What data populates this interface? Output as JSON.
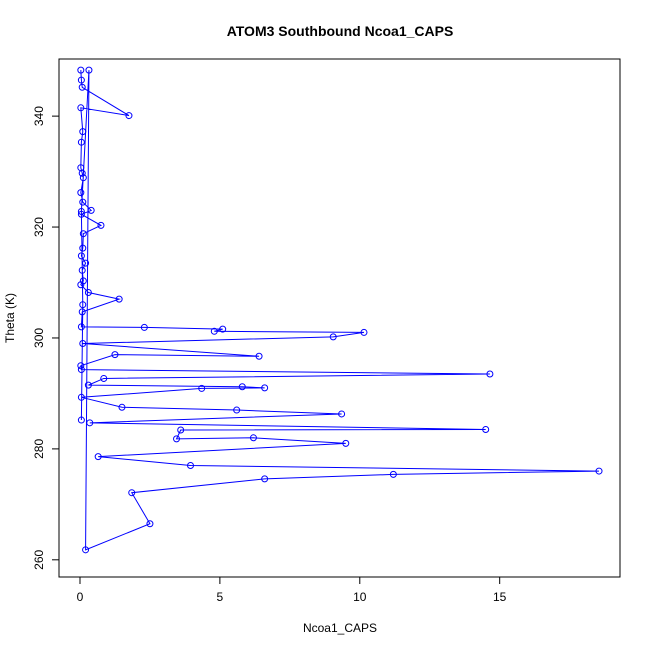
{
  "chart_data": {
    "type": "line",
    "title": "ATOM3 Southbound Ncoa1_CAPS",
    "xlabel": "Ncoa1_CAPS",
    "ylabel": "Theta (K)",
    "xlim": [
      -0.75,
      19.3
    ],
    "ylim": [
      256.9,
      350.3
    ],
    "xticks": [
      0,
      5,
      10,
      15
    ],
    "yticks": [
      260,
      280,
      300,
      320,
      340
    ],
    "grid": false,
    "series": [
      {
        "color": "#0000ff",
        "marker": "open-circle",
        "points": [
          [
            0.03,
            348.3
          ],
          [
            0.05,
            346.5
          ],
          [
            0.08,
            345.2
          ],
          [
            1.75,
            340.1
          ],
          [
            0.03,
            341.5
          ],
          [
            0.1,
            337.2
          ],
          [
            0.05,
            335.3
          ],
          [
            0.03,
            330.7
          ],
          [
            0.08,
            329.7
          ],
          [
            0.12,
            328.9
          ],
          [
            0.03,
            326.2
          ],
          [
            0.1,
            324.5
          ],
          [
            0.4,
            323.0
          ],
          [
            0.05,
            322.3
          ],
          [
            0.75,
            320.3
          ],
          [
            0.12,
            318.8
          ],
          [
            0.1,
            316.2
          ],
          [
            0.05,
            314.8
          ],
          [
            0.2,
            313.5
          ],
          [
            0.08,
            312.2
          ],
          [
            0.12,
            310.3
          ],
          [
            0.03,
            309.6
          ],
          [
            0.3,
            308.2
          ],
          [
            1.4,
            307.0
          ],
          [
            0.08,
            304.7
          ],
          [
            0.05,
            302.0
          ],
          [
            2.3,
            301.9
          ],
          [
            5.1,
            301.6
          ],
          [
            4.8,
            301.2
          ],
          [
            10.15,
            301.0
          ],
          [
            9.05,
            300.2
          ],
          [
            0.1,
            299.0
          ],
          [
            6.4,
            296.7
          ],
          [
            1.25,
            297.0
          ],
          [
            0.03,
            295.0
          ],
          [
            0.05,
            294.3
          ],
          [
            14.65,
            293.5
          ],
          [
            0.85,
            292.7
          ],
          [
            0.3,
            291.5
          ],
          [
            5.8,
            291.2
          ],
          [
            6.6,
            291.0
          ],
          [
            4.35,
            290.9
          ],
          [
            0.05,
            289.3
          ],
          [
            1.5,
            287.5
          ],
          [
            5.6,
            287.0
          ],
          [
            9.35,
            286.3
          ],
          [
            0.35,
            284.7
          ],
          [
            14.5,
            283.5
          ],
          [
            3.6,
            283.4
          ],
          [
            3.45,
            281.8
          ],
          [
            6.2,
            282.0
          ],
          [
            9.5,
            281.0
          ],
          [
            0.65,
            278.6
          ],
          [
            3.95,
            277.0
          ],
          [
            18.55,
            276.0
          ],
          [
            11.2,
            275.4
          ],
          [
            6.6,
            274.6
          ],
          [
            1.85,
            272.1
          ],
          [
            2.5,
            266.5
          ],
          [
            0.2,
            261.8
          ],
          [
            0.32,
            348.3
          ],
          [
            0.05,
            322.8
          ],
          [
            0.1,
            306.0
          ],
          [
            0.05,
            285.2
          ]
        ]
      }
    ]
  }
}
